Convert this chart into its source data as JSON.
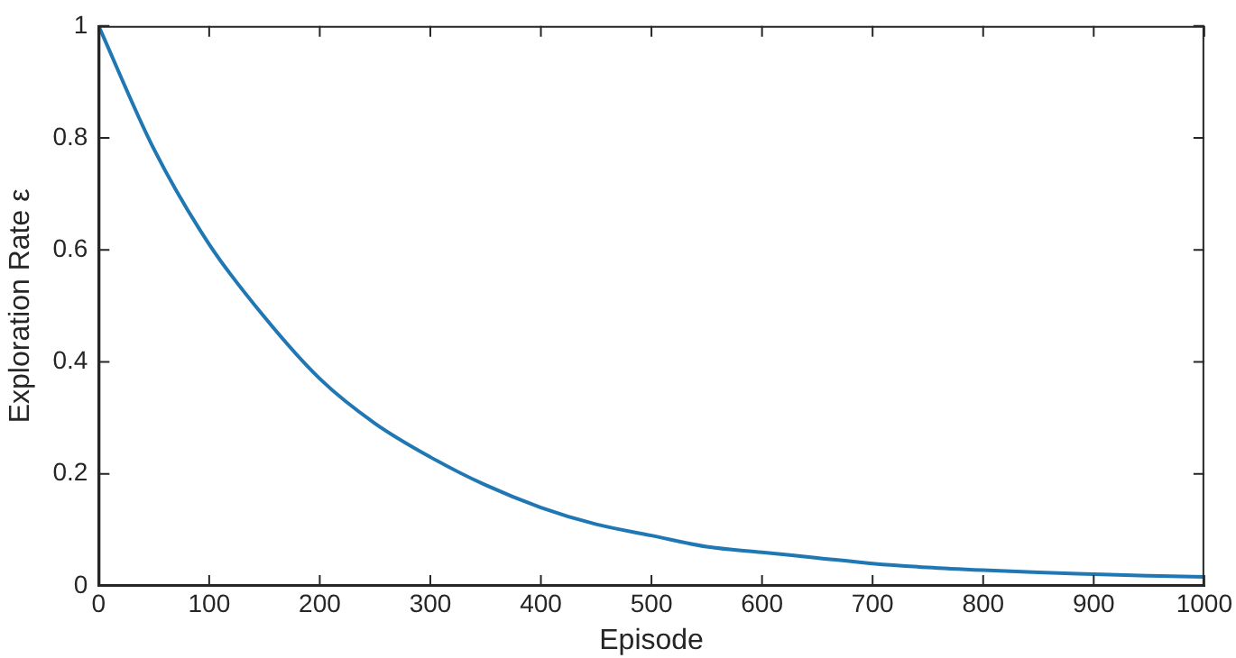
{
  "chart_data": {
    "type": "line",
    "xlabel": "Episode",
    "ylabel": "Exploration Rate ε",
    "x": [
      0,
      50,
      100,
      150,
      200,
      250,
      300,
      350,
      400,
      450,
      500,
      550,
      600,
      650,
      700,
      750,
      800,
      850,
      900,
      950,
      1000
    ],
    "series": [
      {
        "color": "#1f77b4",
        "values": [
          1,
          0.78,
          0.61,
          0.48,
          0.37,
          0.29,
          0.23,
          0.18,
          0.14,
          0.11,
          0.09,
          0.07,
          0.06,
          0.05,
          0.04,
          0.033,
          0.028,
          0.024,
          0.021,
          0.018,
          0.016
        ]
      }
    ],
    "xlim": [
      0,
      1000
    ],
    "xticks": [
      0,
      100,
      200,
      300,
      400,
      500,
      600,
      700,
      800,
      900,
      1000
    ],
    "ylim": [
      0,
      1
    ],
    "yticks": [
      0,
      0.2,
      0.4,
      0.6,
      0.8,
      1
    ],
    "grid": false,
    "legend": false,
    "marker": "none",
    "line_style": "solid"
  }
}
